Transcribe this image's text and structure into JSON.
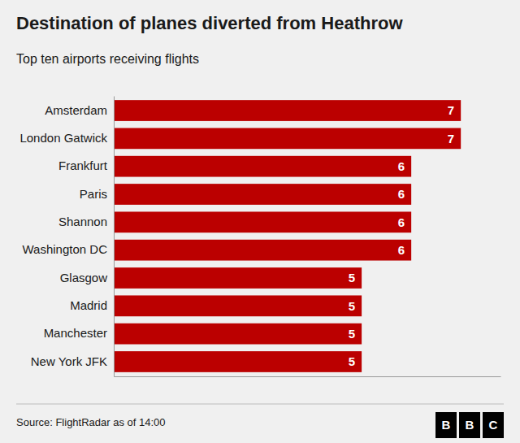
{
  "chart_data": {
    "type": "bar",
    "orientation": "horizontal",
    "title": "Destination of planes diverted from Heathrow",
    "subtitle": "Top ten airports receiving flights",
    "categories": [
      "Amsterdam",
      "London Gatwick",
      "Frankfurt",
      "Paris",
      "Shannon",
      "Washington DC",
      "Glasgow",
      "Madrid",
      "Manchester",
      "New York JFK"
    ],
    "values": [
      7,
      7,
      6,
      6,
      6,
      6,
      5,
      5,
      5,
      5
    ],
    "color": "#bb0000",
    "xlim": [
      0,
      7.8
    ],
    "data_labels": true,
    "tick_labels": "y",
    "grid": false,
    "annotations": [
      "Source: FlightRadar as of 14:00",
      "B",
      "B",
      "C"
    ]
  }
}
